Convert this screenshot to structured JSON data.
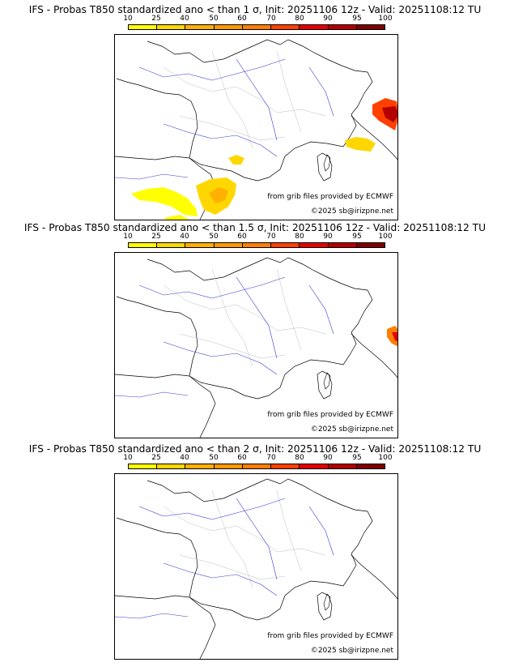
{
  "legend": {
    "ticks": [
      "10",
      "25",
      "40",
      "50",
      "60",
      "70",
      "80",
      "90",
      "95",
      "100"
    ],
    "colors": [
      "#ffff00",
      "#ffd700",
      "#ffb000",
      "#ff9900",
      "#ff7f00",
      "#ff4000",
      "#e60000",
      "#b30000",
      "#800000"
    ]
  },
  "panels": [
    {
      "title": "IFS - Probas T850  standardized ano < than 1 σ, Init: 20251106 12z - Valid: 20251108:12 TU",
      "credit_source": "from grib files provided by ECMWF",
      "credit_copyright": "©2025 sb@irizpne.net"
    },
    {
      "title": "IFS - Probas T850  standardized ano < than 1.5 σ, Init: 20251106 12z - Valid: 20251108:12 TU",
      "credit_source": "from grib files provided by ECMWF",
      "credit_copyright": "©2025 sb@irizpne.net"
    },
    {
      "title": "IFS - Probas T850  standardized ano < than 2 σ, Init: 20251106 12z - Valid: 20251108:12 TU",
      "credit_source": "from grib files provided by ECMWF",
      "credit_copyright": "©2025 sb@irizpne.net"
    }
  ]
}
